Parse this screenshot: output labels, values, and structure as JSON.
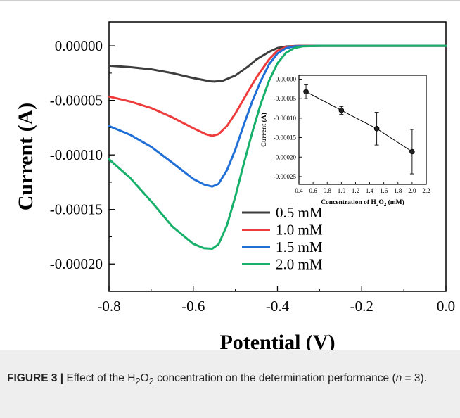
{
  "chart_data": [
    {
      "type": "line",
      "title": "",
      "xlabel": "Potential (V)",
      "ylabel": "Current (A)",
      "xlim": [
        -0.8,
        0.0
      ],
      "ylim": [
        -0.000225,
        2.2e-05
      ],
      "xticks": [
        "-0.8",
        "-0.6",
        "-0.4",
        "-0.2",
        "0.0"
      ],
      "xtick_values": [
        -0.8,
        -0.6,
        -0.4,
        -0.2,
        0.0
      ],
      "yticks": [
        "0.00000",
        "-0.00005",
        "-0.00010",
        "-0.00015",
        "-0.00020"
      ],
      "ytick_values": [
        0.0,
        -5e-05,
        -0.0001,
        -0.00015,
        -0.0002
      ],
      "legend_position": "bottom-center",
      "grid": false,
      "series": [
        {
          "name": "0.5 mM",
          "color": "#3d3d3d",
          "x": [
            -0.8,
            -0.75,
            -0.7,
            -0.65,
            -0.6,
            -0.56,
            -0.55,
            -0.53,
            -0.5,
            -0.47,
            -0.45,
            -0.42,
            -0.4,
            -0.38,
            -0.35,
            -0.3,
            -0.2,
            -0.1,
            0.0
          ],
          "y": [
            -1.82e-05,
            -1.95e-05,
            -2.15e-05,
            -2.5e-05,
            -2.95e-05,
            -3.25e-05,
            -3.27e-05,
            -3.2e-05,
            -2.72e-05,
            -1.9e-05,
            -1.25e-05,
            -5.5e-06,
            -2e-06,
            -6e-07,
            0.0,
            0.0,
            0.0,
            0.0,
            0.0
          ]
        },
        {
          "name": "1.0 mM",
          "color": "#ee3b3b",
          "x": [
            -0.8,
            -0.75,
            -0.7,
            -0.65,
            -0.6,
            -0.57,
            -0.555,
            -0.54,
            -0.52,
            -0.5,
            -0.47,
            -0.45,
            -0.42,
            -0.4,
            -0.38,
            -0.36,
            -0.3,
            -0.2,
            -0.1,
            0.0
          ],
          "y": [
            -4.65e-05,
            -5.1e-05,
            -5.7e-05,
            -6.55e-05,
            -7.55e-05,
            -8.1e-05,
            -8.25e-05,
            -8.1e-05,
            -7.35e-05,
            -6.2e-05,
            -4.2e-05,
            -2.9e-05,
            -1.25e-05,
            -4.5e-06,
            -1.2e-06,
            -2e-07,
            0.0,
            0.0,
            0.0,
            0.0
          ]
        },
        {
          "name": "1.5 mM",
          "color": "#1f6fd6",
          "x": [
            -0.8,
            -0.75,
            -0.7,
            -0.65,
            -0.6,
            -0.575,
            -0.555,
            -0.54,
            -0.52,
            -0.5,
            -0.48,
            -0.46,
            -0.44,
            -0.42,
            -0.4,
            -0.38,
            -0.36,
            -0.3,
            -0.2,
            -0.1,
            0.0
          ],
          "y": [
            -7.35e-05,
            -8.15e-05,
            -9.25e-05,
            -0.000107,
            -0.000122,
            -0.000127,
            -0.000129,
            -0.0001265,
            -0.000114,
            -9.5e-05,
            -7.25e-05,
            -5.1e-05,
            -3.25e-05,
            -1.7e-05,
            -7e-06,
            -2.2e-06,
            -4e-07,
            0.0,
            0.0,
            0.0,
            0.0
          ]
        },
        {
          "name": "2.0 mM",
          "color": "#17b06a",
          "x": [
            -0.8,
            -0.75,
            -0.7,
            -0.65,
            -0.6,
            -0.575,
            -0.555,
            -0.54,
            -0.52,
            -0.5,
            -0.48,
            -0.46,
            -0.44,
            -0.42,
            -0.4,
            -0.38,
            -0.36,
            -0.34,
            -0.3,
            -0.2,
            -0.1,
            0.0
          ],
          "y": [
            -0.000104,
            -0.000121,
            -0.0001425,
            -0.0001655,
            -0.0001815,
            -0.0001855,
            -0.000186,
            -0.000182,
            -0.0001645,
            -0.000138,
            -0.000108,
            -7.95e-05,
            -5.35e-05,
            -3.2e-05,
            -1.6e-05,
            -6.5e-06,
            -2e-06,
            -4e-07,
            0.0,
            0.0,
            0.0,
            0.0
          ]
        }
      ]
    },
    {
      "type": "scatter",
      "inset": true,
      "title": "",
      "xlabel_parts": [
        "Concentration of H",
        "2",
        "O",
        "2",
        " (mM)"
      ],
      "ylabel": "Current (A)",
      "xlim": [
        0.4,
        2.2
      ],
      "ylim": [
        -0.00027,
        1e-05
      ],
      "xticks": [
        "0.4",
        "0.6",
        "0.8",
        "1.0",
        "1.2",
        "1.4",
        "1.6",
        "1.8",
        "2.0",
        "2.2"
      ],
      "xtick_values": [
        0.4,
        0.6,
        0.8,
        1.0,
        1.2,
        1.4,
        1.6,
        1.8,
        2.0,
        2.2
      ],
      "yticks": [
        "0.00000",
        "-0.00005",
        "-0.00010",
        "-0.00015",
        "-0.00020",
        "-0.00025"
      ],
      "ytick_values": [
        0.0,
        -5e-05,
        -0.0001,
        -0.00015,
        -0.0002,
        -0.00025
      ],
      "line": true,
      "error_bars": true,
      "series": [
        {
          "x": [
            0.5,
            1.0,
            1.5,
            2.0
          ],
          "y": [
            -3.2e-05,
            -8e-05,
            -0.000127,
            -0.000186
          ],
          "error": [
            1.8e-05,
            1e-05,
            4.2e-05,
            5.7e-05
          ]
        }
      ]
    }
  ],
  "caption": {
    "label": "FIGURE 3 |",
    "text_1": " Effect of the H",
    "sub_1": "2",
    "text_2": "O",
    "sub_2": "2",
    "text_3": " concentration on the determination performance (",
    "n_var": "n",
    "text_4": " = 3)."
  }
}
